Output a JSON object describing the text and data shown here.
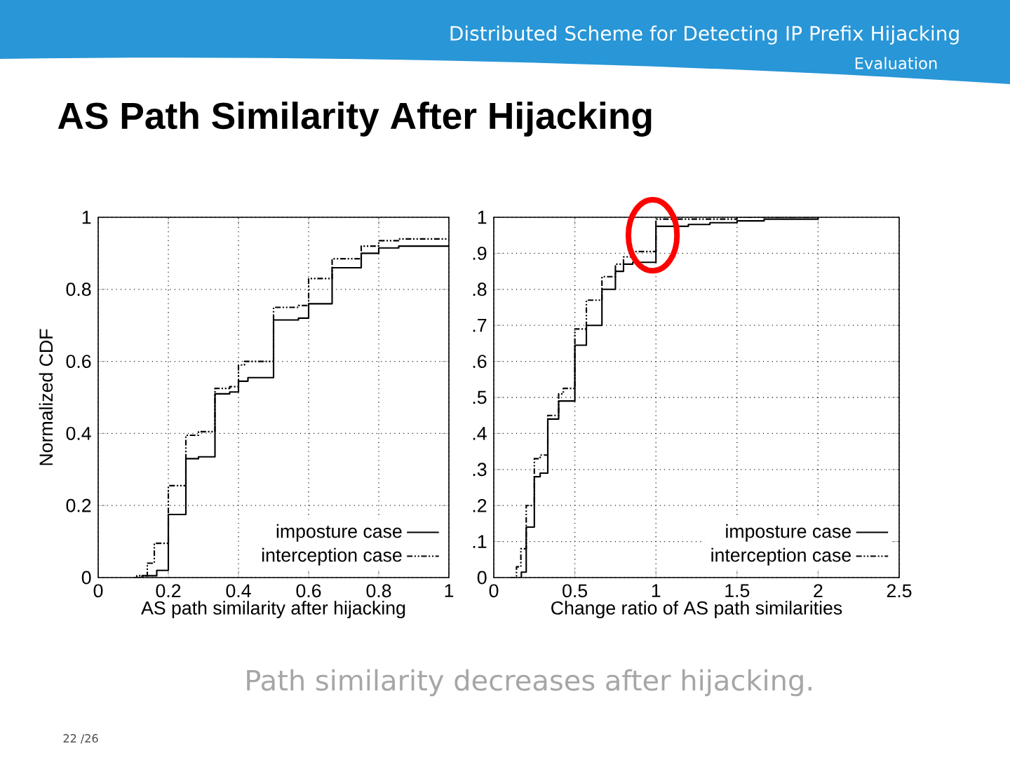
{
  "chart_data": [
    {
      "type": "step",
      "title": "AS Path Similarity After Hijacking",
      "xlabel": "AS path similarity after hijacking",
      "ylabel": "Normalized CDF",
      "annotations": [
        "Distributed Scheme for Detecting IP Prefix Hijacking",
        "Evaluation",
        "Path similarity decreases after hijacking.",
        "22 /26"
      ],
      "xlim": [
        0,
        1
      ],
      "ylim": [
        0,
        1
      ],
      "xticks": [
        0,
        0.2,
        0.4,
        0.6,
        0.8,
        1
      ],
      "yticks": [
        0,
        0.2,
        0.4,
        0.6,
        0.8,
        1
      ],
      "grid": true,
      "legend": "bottom right",
      "series": [
        {
          "name": "imposture case",
          "color": "#000000",
          "line_style": "solid",
          "x": [
            0.1,
            0.125,
            0.167,
            0.2,
            0.25,
            0.286,
            0.333,
            0.375,
            0.4,
            0.427,
            0.5,
            0.571,
            0.6,
            0.667,
            0.75,
            0.8,
            0.857,
            1
          ],
          "values": [
            0,
            0.005,
            0.02,
            0.175,
            0.33,
            0.335,
            0.51,
            0.515,
            0.545,
            0.555,
            0.715,
            0.72,
            0.76,
            0.86,
            0.9,
            0.915,
            0.92,
            0.92
          ]
        },
        {
          "name": "interception case",
          "color": "#000000",
          "line_style": "dashed",
          "x": [
            0.1,
            0.11,
            0.14,
            0.16,
            0.2,
            0.25,
            0.286,
            0.333,
            0.375,
            0.4,
            0.417,
            0.5,
            0.571,
            0.6,
            0.667,
            0.75,
            0.8,
            0.857,
            1
          ],
          "values": [
            0,
            0.005,
            0.04,
            0.095,
            0.255,
            0.395,
            0.405,
            0.525,
            0.53,
            0.59,
            0.6,
            0.75,
            0.755,
            0.83,
            0.885,
            0.92,
            0.935,
            0.94,
            0.94
          ]
        }
      ]
    },
    {
      "type": "step",
      "xlabel": "Change ratio of AS path similarities",
      "xlim": [
        0,
        2.5
      ],
      "ylim": [
        0,
        1
      ],
      "xticks": [
        0,
        0.5,
        1,
        1.5,
        2,
        2.5
      ],
      "yticks": [
        0,
        {
          "value": 0.1,
          "label": ".1"
        },
        {
          "value": 0.2,
          "label": ".2"
        },
        {
          "value": 0.3,
          "label": ".3"
        },
        {
          "value": 0.4,
          "label": ".4"
        },
        {
          "value": 0.5,
          "label": ".5"
        },
        {
          "value": 0.6,
          "label": ".6"
        },
        {
          "value": 0.7,
          "label": ".7"
        },
        {
          "value": 0.8,
          "label": ".8"
        },
        {
          "value": 0.9,
          "label": ".9"
        },
        1
      ],
      "grid": true,
      "legend": "bottom right",
      "series": [
        {
          "name": "imposture case",
          "color": "#000000",
          "line_style": "solid",
          "x": [
            0.15,
            0.17,
            0.2,
            0.25,
            0.286,
            0.333,
            0.4,
            0.5,
            0.571,
            0.667,
            0.75,
            0.8,
            0.857,
            1,
            1.2,
            1.333,
            1.5,
            1.667,
            2
          ],
          "values": [
            0,
            0.015,
            0.14,
            0.28,
            0.29,
            0.44,
            0.49,
            0.645,
            0.7,
            0.8,
            0.85,
            0.87,
            0.875,
            0.975,
            0.98,
            0.985,
            0.99,
            0.995,
            1
          ]
        },
        {
          "name": "interception case",
          "color": "#000000",
          "line_style": "dashed",
          "x": [
            0.1,
            0.14,
            0.167,
            0.2,
            0.25,
            0.286,
            0.333,
            0.4,
            0.429,
            0.5,
            0.571,
            0.667,
            0.75,
            0.8,
            0.857,
            1,
            1.5,
            2
          ],
          "values": [
            0,
            0.03,
            0.08,
            0.2,
            0.33,
            0.34,
            0.45,
            0.51,
            0.525,
            0.69,
            0.77,
            0.835,
            0.87,
            0.89,
            0.905,
            0.995,
            1,
            1
          ]
        }
      ]
    }
  ]
}
